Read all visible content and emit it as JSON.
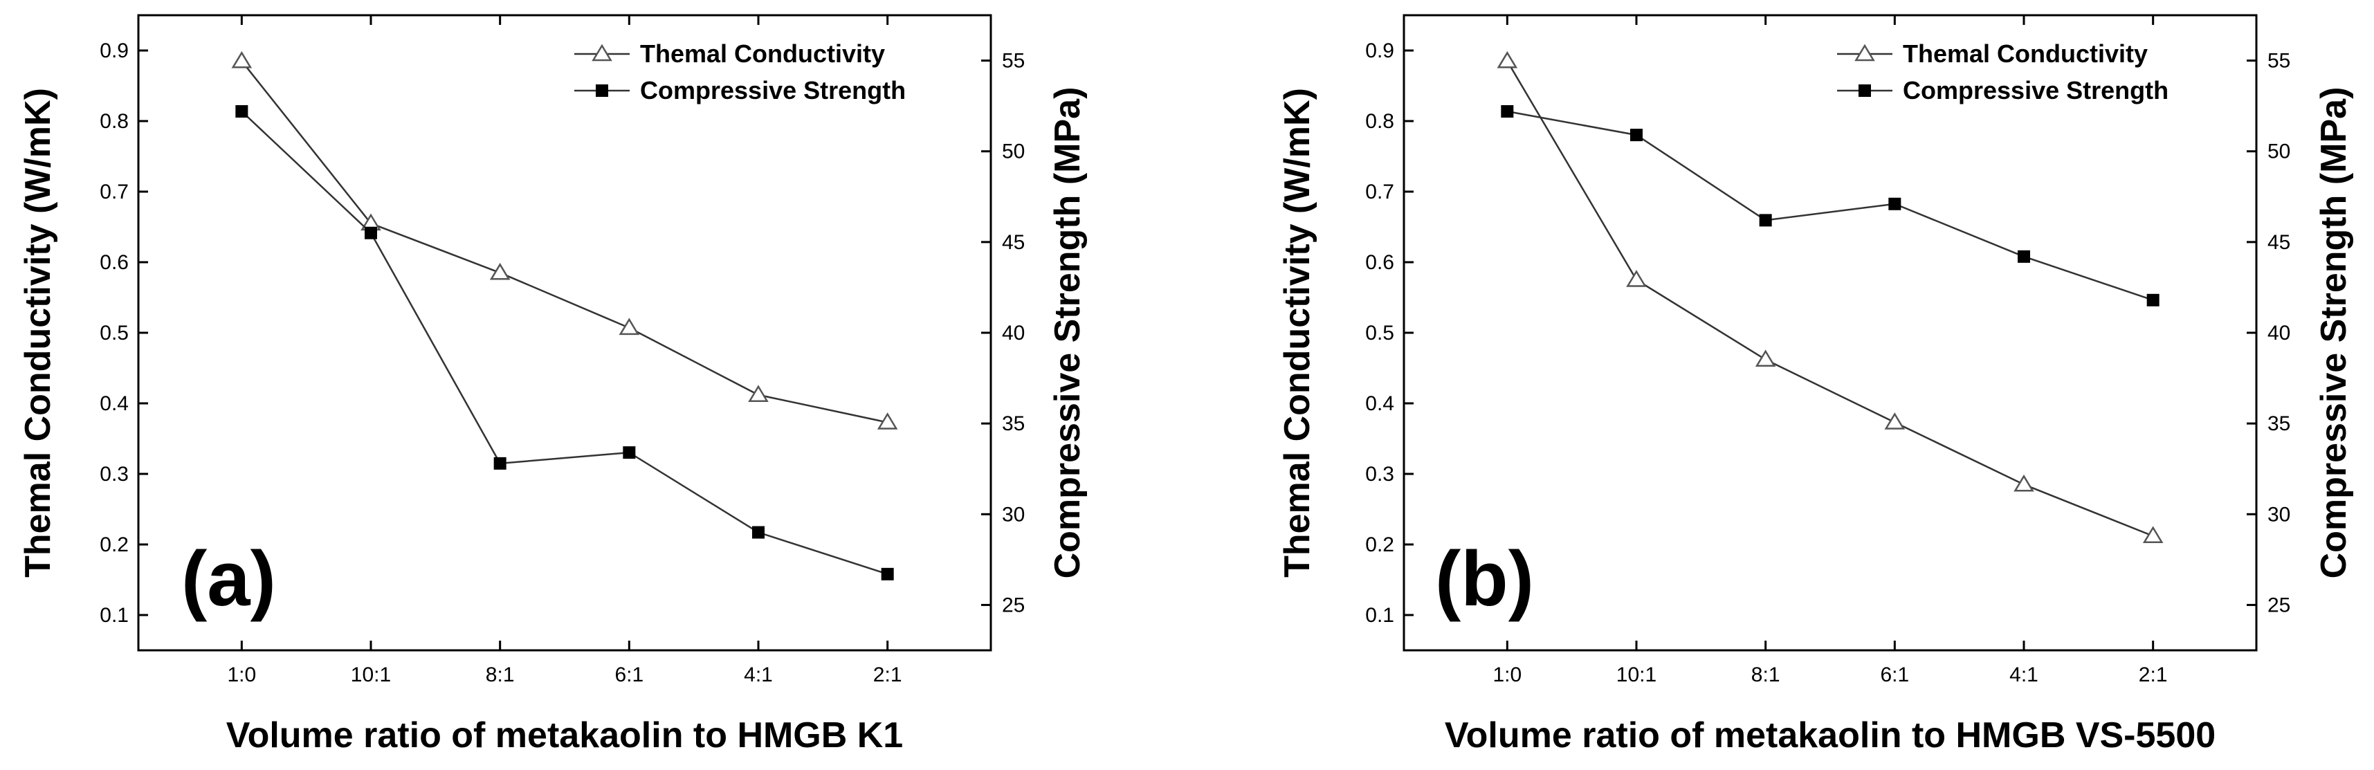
{
  "chart_data": [
    {
      "type": "line",
      "panel_label": "(a)",
      "xlabel": "Volume ratio of metakaolin to HMGB K1",
      "ylabel": "Themal Conductivity (W/mK)",
      "y2label": "Compressive Strength (MPa)",
      "categories": [
        "1:0",
        "10:1",
        "8:1",
        "6:1",
        "4:1",
        "2:1"
      ],
      "ylim": [
        0.05,
        0.95
      ],
      "yticks": [
        0.1,
        0.2,
        0.3,
        0.4,
        0.5,
        0.6,
        0.7,
        0.8,
        0.9
      ],
      "ytick_labels": [
        "0.1",
        "0.2",
        "0.3",
        "0.4",
        "0.5",
        "0.6",
        "0.7",
        "0.8",
        "0.9"
      ],
      "y2lim": [
        22.5,
        57.5
      ],
      "y2ticks": [
        25,
        30,
        35,
        40,
        45,
        50,
        55
      ],
      "y2tick_labels": [
        "25",
        "30",
        "35",
        "40",
        "45",
        "50",
        "55"
      ],
      "legend_position": "top-right",
      "series": [
        {
          "name": "Themal Conductivity",
          "axis": "left",
          "marker": "open-triangle",
          "values": [
            0.885,
            0.655,
            0.585,
            0.507,
            0.412,
            0.373
          ]
        },
        {
          "name": "Compressive Strength",
          "axis": "right",
          "marker": "filled-square",
          "values": [
            52.2,
            45.5,
            32.8,
            33.4,
            29.0,
            26.7
          ]
        }
      ]
    },
    {
      "type": "line",
      "panel_label": "(b)",
      "xlabel": "Volume ratio of metakaolin to HMGB VS-5500",
      "ylabel": "Themal Conductivity (W/mK)",
      "y2label": "Compressive Strength (MPa)",
      "categories": [
        "1:0",
        "10:1",
        "8:1",
        "6:1",
        "4:1",
        "2:1"
      ],
      "ylim": [
        0.05,
        0.95
      ],
      "yticks": [
        0.1,
        0.2,
        0.3,
        0.4,
        0.5,
        0.6,
        0.7,
        0.8,
        0.9
      ],
      "ytick_labels": [
        "0.1",
        "0.2",
        "0.3",
        "0.4",
        "0.5",
        "0.6",
        "0.7",
        "0.8",
        "0.9"
      ],
      "y2lim": [
        22.5,
        57.5
      ],
      "y2ticks": [
        25,
        30,
        35,
        40,
        45,
        50,
        55
      ],
      "y2tick_labels": [
        "25",
        "30",
        "35",
        "40",
        "45",
        "50",
        "55"
      ],
      "legend_position": "top-right",
      "series": [
        {
          "name": "Themal Conductivity",
          "axis": "left",
          "marker": "open-triangle",
          "values": [
            0.885,
            0.575,
            0.462,
            0.373,
            0.285,
            0.212
          ]
        },
        {
          "name": "Compressive Strength",
          "axis": "right",
          "marker": "filled-square",
          "values": [
            52.2,
            50.9,
            46.2,
            47.1,
            44.2,
            41.8
          ]
        }
      ]
    }
  ]
}
